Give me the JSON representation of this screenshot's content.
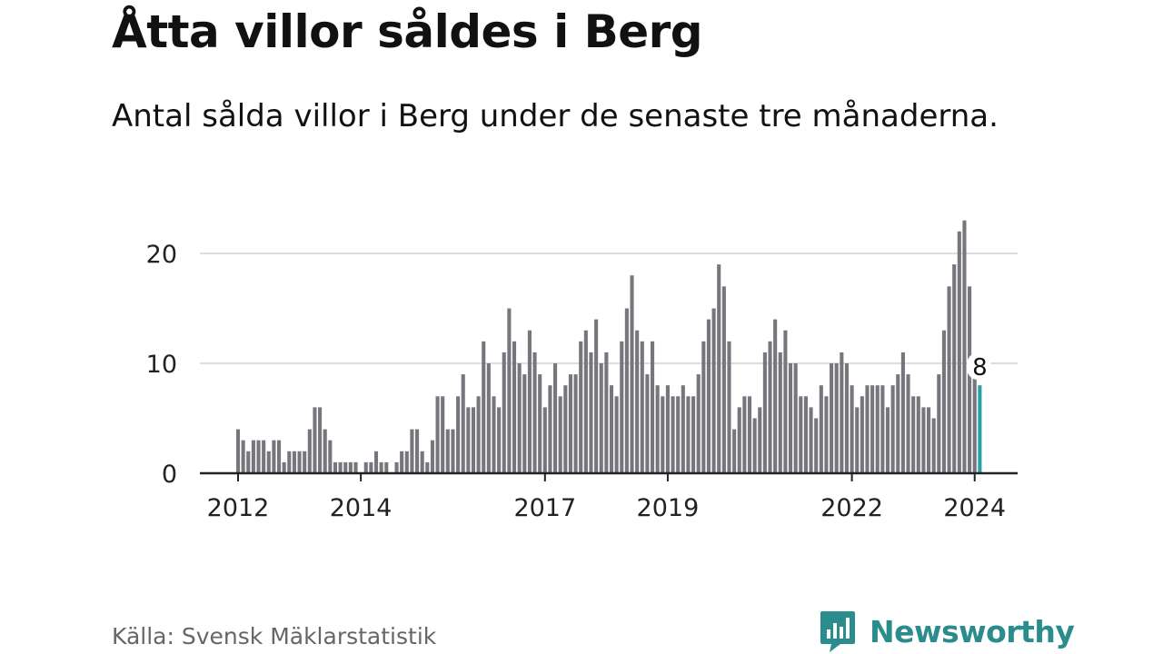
{
  "title": "Åtta villor såldes i Berg",
  "subtitle": "Antal sålda villor i Berg under de senaste tre månaderna.",
  "source": "Källa: Svensk Mäklarstatistik",
  "brand": {
    "name": "Newsworthy",
    "color": "#2a8c8c"
  },
  "chart_data": {
    "type": "bar",
    "title": "Åtta villor såldes i Berg",
    "xlabel": "",
    "ylabel": "",
    "ylim": [
      0,
      23
    ],
    "yticks": [
      0,
      10,
      20
    ],
    "grid": true,
    "x_start": "2012-01",
    "xtick_labels": [
      {
        "label": "2012",
        "index": 0
      },
      {
        "label": "2014",
        "index": 24
      },
      {
        "label": "2017",
        "index": 60
      },
      {
        "label": "2019",
        "index": 84
      },
      {
        "label": "2022",
        "index": 120
      },
      {
        "label": "2024",
        "index": 144
      }
    ],
    "values": [
      4,
      3,
      2,
      3,
      3,
      3,
      2,
      3,
      3,
      1,
      2,
      2,
      2,
      2,
      4,
      6,
      6,
      4,
      3,
      1,
      1,
      1,
      1,
      1,
      0,
      1,
      1,
      2,
      1,
      1,
      0,
      1,
      2,
      2,
      4,
      4,
      2,
      1,
      3,
      7,
      7,
      4,
      4,
      7,
      9,
      6,
      6,
      7,
      12,
      10,
      7,
      6,
      11,
      15,
      12,
      10,
      9,
      13,
      11,
      9,
      6,
      8,
      10,
      7,
      8,
      9,
      9,
      12,
      13,
      11,
      14,
      10,
      11,
      8,
      7,
      12,
      15,
      18,
      13,
      12,
      9,
      12,
      8,
      7,
      8,
      7,
      7,
      8,
      7,
      7,
      9,
      12,
      14,
      15,
      19,
      17,
      12,
      4,
      6,
      7,
      7,
      5,
      6,
      11,
      12,
      14,
      11,
      13,
      10,
      10,
      7,
      7,
      6,
      5,
      8,
      7,
      10,
      10,
      11,
      10,
      8,
      6,
      7,
      8,
      8,
      8,
      8,
      6,
      8,
      9,
      11,
      9,
      7,
      7,
      6,
      6,
      5,
      9,
      13,
      17,
      19,
      22,
      23,
      17,
      9,
      8
    ],
    "highlight": {
      "index": 145,
      "value": 8,
      "label": "8"
    },
    "colors": {
      "bar": "#77767c",
      "highlight": "#27a2a5",
      "grid": "#dddddd",
      "axis": "#222222"
    }
  }
}
